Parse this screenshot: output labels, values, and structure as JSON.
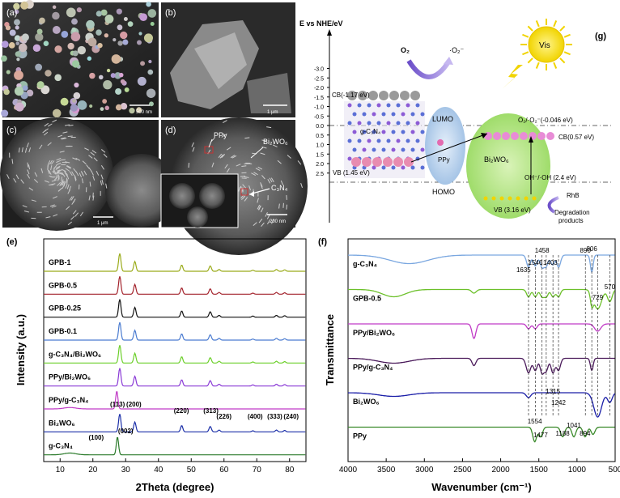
{
  "sem": {
    "panels": [
      {
        "letter": "(a)",
        "scale": "500 nm"
      },
      {
        "letter": "(b)",
        "scale": "1 μm"
      },
      {
        "letter": "(c)",
        "scale": "1 μm"
      },
      {
        "letter": "(d)",
        "scale": "200 nm",
        "labels": [
          "PPy",
          "Bi₂WO₆",
          "C₃N₄"
        ]
      }
    ]
  },
  "band_diagram": {
    "panel_letter": "(g)",
    "yaxis_title": "E vs NHE/eV",
    "yticks": [
      "-3.0",
      "-2.5",
      "-2.0",
      "-1.5",
      "-1.0",
      "-0.5",
      "0.0",
      "0.5",
      "1.0",
      "1.5",
      "2.0",
      "2.5"
    ],
    "sun_label": "Vis",
    "o2": "O₂",
    "superoxide": "·O₂⁻",
    "gc3n4_cb": "CB(-1.17 eV)",
    "gc3n4_label": "g-C₃N₄",
    "gc3n4_vb": "VB (1.45 eV)",
    "lumo": "LUMO",
    "homo": "HOMO",
    "ppy": "PPy",
    "bi2wo6": "Bi₂WO₆",
    "bi2wo6_cb": "CB(0.57 eV)",
    "bi2wo6_vb": "VB (3.16 eV)",
    "o2_potential": "O₂/·O₂⁻(-0.046 eV)",
    "oh_potential": "OH⁻/·OH (2.4 eV)",
    "rhb": "RhB",
    "degradation_line1": "Degradation",
    "degradation_line2": "products"
  },
  "chart_data": [
    {
      "type": "line",
      "panel_letter": "(e)",
      "xlabel": "2Theta (degree)",
      "ylabel": "Intensity (a.u.)",
      "xlim": [
        5,
        85
      ],
      "xticks": [
        10,
        20,
        30,
        40,
        50,
        60,
        70,
        80
      ],
      "series": [
        {
          "name": "GPB-1",
          "color": "#9aab1a",
          "peaks": [
            [
              28.2,
              1.0
            ],
            [
              32.8,
              0.55
            ],
            [
              47.1,
              0.35
            ],
            [
              55.8,
              0.3
            ],
            [
              58.5,
              0.1
            ],
            [
              68.8,
              0.06
            ],
            [
              76.0,
              0.1
            ],
            [
              78.5,
              0.08
            ]
          ]
        },
        {
          "name": "GPB-0.5",
          "color": "#a3232c",
          "peaks": [
            [
              28.2,
              1.0
            ],
            [
              32.8,
              0.55
            ],
            [
              47.1,
              0.35
            ],
            [
              55.8,
              0.3
            ],
            [
              58.5,
              0.1
            ],
            [
              68.8,
              0.06
            ],
            [
              76.0,
              0.1
            ],
            [
              78.5,
              0.08
            ]
          ]
        },
        {
          "name": "GPB-0.25",
          "color": "#111111",
          "peaks": [
            [
              28.2,
              1.0
            ],
            [
              32.8,
              0.55
            ],
            [
              47.1,
              0.35
            ],
            [
              55.8,
              0.3
            ],
            [
              58.5,
              0.1
            ],
            [
              68.8,
              0.06
            ],
            [
              76.0,
              0.1
            ],
            [
              78.5,
              0.08
            ]
          ]
        },
        {
          "name": "GPB-0.1",
          "color": "#4a7bd0",
          "peaks": [
            [
              28.2,
              1.0
            ],
            [
              32.8,
              0.55
            ],
            [
              47.1,
              0.35
            ],
            [
              55.8,
              0.3
            ],
            [
              58.5,
              0.1
            ],
            [
              68.8,
              0.06
            ],
            [
              76.0,
              0.1
            ],
            [
              78.5,
              0.08
            ]
          ]
        },
        {
          "name": "g-C₃N₄/Bi₂WO₆",
          "color": "#6ccf2a",
          "peaks": [
            [
              28.2,
              1.0
            ],
            [
              32.8,
              0.55
            ],
            [
              47.1,
              0.35
            ],
            [
              55.8,
              0.3
            ],
            [
              58.5,
              0.1
            ],
            [
              68.8,
              0.06
            ],
            [
              76.0,
              0.1
            ],
            [
              78.5,
              0.08
            ]
          ]
        },
        {
          "name": "PPy/Bi₂WO₆",
          "color": "#8a3ad6",
          "peaks": [
            [
              28.2,
              1.0
            ],
            [
              32.8,
              0.55
            ],
            [
              47.1,
              0.35
            ],
            [
              55.8,
              0.3
            ],
            [
              58.5,
              0.1
            ],
            [
              68.8,
              0.06
            ],
            [
              76.0,
              0.1
            ],
            [
              78.5,
              0.08
            ]
          ]
        },
        {
          "name": "PPy/g-C₃N₄",
          "color": "#c03ac6",
          "peaks": [
            [
              13.0,
              0.08
            ],
            [
              27.3,
              1.0
            ]
          ]
        },
        {
          "name": "Bi₂WO₆",
          "color": "#1b2fa8",
          "peaks": [
            [
              28.2,
              1.0
            ],
            [
              32.8,
              0.55
            ],
            [
              47.1,
              0.35
            ],
            [
              55.8,
              0.3
            ],
            [
              58.5,
              0.1
            ],
            [
              68.8,
              0.06
            ],
            [
              76.0,
              0.1
            ],
            [
              78.5,
              0.08
            ]
          ]
        },
        {
          "name": "g-C₃N₄",
          "color": "#2a7a2a",
          "peaks": [
            [
              13.0,
              0.1
            ],
            [
              27.5,
              1.0
            ]
          ]
        }
      ],
      "annotations": [
        "(113)",
        "(200)",
        "(220)",
        "(313)",
        "(226)",
        "(400)",
        "(333)",
        "(240)",
        "(100)",
        "(002)"
      ]
    },
    {
      "type": "line",
      "panel_letter": "(f)",
      "xlabel": "Wavenumber (cm⁻¹)",
      "ylabel": "Transmittance",
      "xlim": [
        4000,
        500
      ],
      "xticks": [
        4000,
        3500,
        3000,
        2500,
        2000,
        1500,
        1000,
        500
      ],
      "series": [
        {
          "name": "g-C₃N₄",
          "color": "#7aa7e0",
          "dips": [
            [
              3200,
              0.35,
              250
            ],
            [
              1635,
              0.5,
              25
            ],
            [
              1546,
              0.45,
              25
            ],
            [
              1458,
              0.5,
              25
            ],
            [
              1403,
              0.45,
              25
            ],
            [
              1320,
              0.4,
              25
            ],
            [
              1240,
              0.5,
              25
            ],
            [
              806,
              0.7,
              18
            ]
          ]
        },
        {
          "name": "GPB-0.5",
          "color": "#6cc02a",
          "dips": [
            [
              3400,
              0.3,
              150
            ],
            [
              2350,
              0.15,
              30
            ],
            [
              1635,
              0.3,
              25
            ],
            [
              1546,
              0.3,
              25
            ],
            [
              1458,
              0.3,
              25
            ],
            [
              1403,
              0.3,
              25
            ],
            [
              1315,
              0.3,
              25
            ],
            [
              1242,
              0.3,
              25
            ],
            [
              806,
              0.5,
              18
            ],
            [
              729,
              0.8,
              50
            ],
            [
              570,
              0.5,
              30
            ]
          ]
        },
        {
          "name": "PPy/Bi₂WO₆",
          "color": "#c03ac6",
          "dips": [
            [
              2350,
              0.6,
              25
            ],
            [
              1635,
              0.2,
              25
            ],
            [
              1546,
              0.2,
              25
            ],
            [
              729,
              0.3,
              40
            ]
          ]
        },
        {
          "name": "PPy/g-C₃N₄",
          "color": "#4a1a5a",
          "dips": [
            [
              3400,
              0.2,
              200
            ],
            [
              2350,
              0.3,
              25
            ],
            [
              1635,
              0.6,
              30
            ],
            [
              1546,
              0.5,
              25
            ],
            [
              1458,
              0.6,
              25
            ],
            [
              1403,
              0.5,
              25
            ],
            [
              1315,
              0.6,
              25
            ],
            [
              1242,
              0.5,
              25
            ],
            [
              806,
              0.5,
              18
            ]
          ]
        },
        {
          "name": "Bi₂WO₆",
          "color": "#1b1fa8",
          "dips": [
            [
              3400,
              0.15,
              200
            ],
            [
              1635,
              0.2,
              30
            ],
            [
              729,
              1.0,
              50
            ],
            [
              570,
              0.4,
              30
            ]
          ]
        },
        {
          "name": "PPy",
          "color": "#3a8a2a",
          "dips": [
            [
              1554,
              0.6,
              25
            ],
            [
              1477,
              0.4,
              25
            ],
            [
              1188,
              0.4,
              25
            ],
            [
              1041,
              0.4,
              25
            ],
            [
              894,
              0.4,
              25
            ],
            [
              790,
              0.3,
              25
            ]
          ]
        }
      ],
      "annotations": [
        "1635",
        "1546",
        "1458",
        "1403",
        "890",
        "806",
        "570",
        "729",
        "1315",
        "1242",
        "1554",
        "1477",
        "1188",
        "1041",
        "894"
      ]
    }
  ]
}
